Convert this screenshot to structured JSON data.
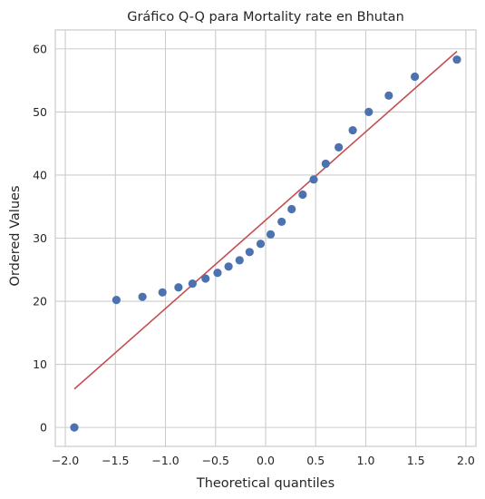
{
  "chart_data": {
    "type": "scatter",
    "title": "Gráfico Q-Q para Mortality rate en Bhutan",
    "xlabel": "Theoretical quantiles",
    "ylabel": "Ordered Values",
    "xlim": [
      -2.1,
      2.1
    ],
    "ylim": [
      -3,
      63
    ],
    "xticks": [
      -2.0,
      -1.5,
      -1.0,
      -0.5,
      0.0,
      0.5,
      1.0,
      1.5,
      2.0
    ],
    "xtick_labels": [
      "−2.0",
      "−1.5",
      "−1.0",
      "−0.5",
      "0.0",
      "0.5",
      "1.0",
      "1.5",
      "2.0"
    ],
    "yticks": [
      0,
      10,
      20,
      30,
      40,
      50,
      60
    ],
    "ytick_labels": [
      "0",
      "10",
      "20",
      "30",
      "40",
      "50",
      "60"
    ],
    "grid": true,
    "series": [
      {
        "type": "scatter",
        "color": "#4c72b0",
        "x": [
          -1.91,
          -1.49,
          -1.23,
          -1.03,
          -0.87,
          -0.73,
          -0.6,
          -0.48,
          -0.37,
          -0.26,
          -0.16,
          -0.05,
          0.05,
          0.16,
          0.26,
          0.37,
          0.48,
          0.6,
          0.73,
          0.87,
          1.03,
          1.23,
          1.49,
          1.91
        ],
        "y": [
          0.0,
          20.2,
          20.7,
          21.4,
          22.2,
          22.8,
          23.6,
          24.5,
          25.5,
          26.5,
          27.8,
          29.1,
          30.6,
          32.6,
          34.6,
          36.9,
          39.3,
          41.8,
          44.4,
          47.1,
          50.0,
          52.6,
          55.6,
          58.3
        ]
      },
      {
        "type": "line",
        "color": "#c44e52",
        "x": [
          -1.91,
          1.91
        ],
        "y": [
          6.1,
          59.6
        ]
      }
    ]
  }
}
